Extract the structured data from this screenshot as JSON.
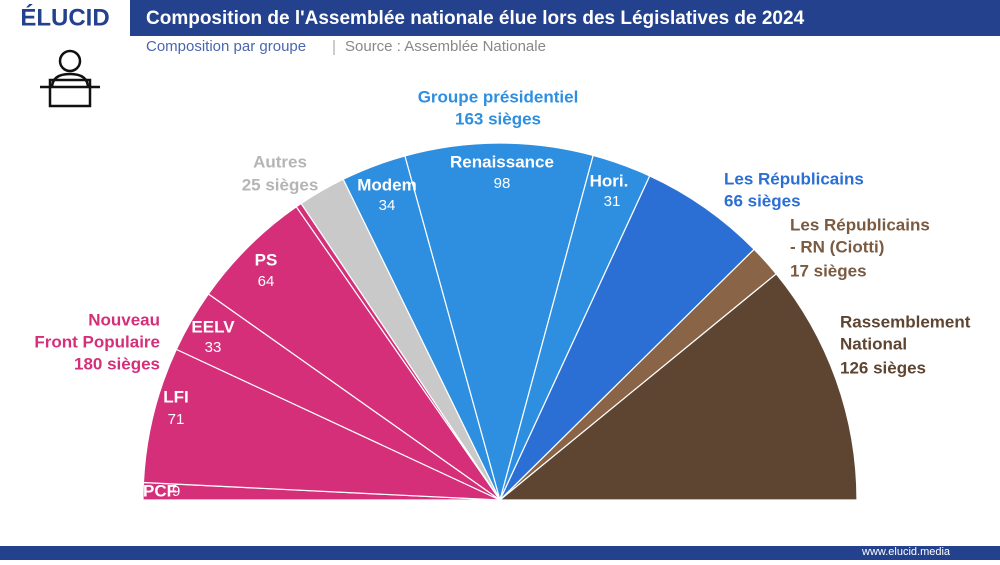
{
  "brand": "ÉLUCID",
  "footer": "www.elucid.media",
  "chart_data": {
    "type": "hemicycle",
    "title": "Composition de l'Assemblée nationale élue lors des Législatives de 2024",
    "subtitle": "Composition par groupe",
    "source": "Source : Assemblée Nationale",
    "categories": [
      [
        "PCF"
      ],
      [
        "LFI"
      ],
      [
        "EELV"
      ],
      [
        "PS"
      ],
      null,
      [
        "Autres"
      ],
      [
        "Modem"
      ],
      [
        "Renaissance"
      ],
      [
        "Hori."
      ],
      [
        "Les Républicains"
      ],
      [
        "Les Républicains",
        "- RN (Ciotti)"
      ],
      [
        "Rassemblement",
        "National"
      ]
    ],
    "values": [
      9,
      71,
      33,
      64,
      3,
      25,
      34,
      98,
      31,
      66,
      17,
      126
    ],
    "value_labels": [
      "9",
      "71",
      "33",
      "64",
      null,
      "25 sièges",
      "34",
      "98",
      "31",
      "66 sièges",
      "17 sièges",
      "126 sièges"
    ],
    "colors": [
      "#d52f7a",
      "#d52f7a",
      "#d52f7a",
      "#d52f7a",
      "#d52f7a",
      "#c9c9c9",
      "#2e8fe1",
      "#2e8fe1",
      "#2e8fe1",
      "#2b6fd5",
      "#8a6446",
      "#5e4532"
    ],
    "groups": [
      {
        "name": [
          "Nouveau",
          "Front Populaire"
        ],
        "seats": "180 sièges",
        "color": "#d52f7a"
      },
      {
        "name": [
          "Groupe présidentiel"
        ],
        "seats": "163 sièges",
        "color": "#2e8fe1"
      }
    ]
  }
}
